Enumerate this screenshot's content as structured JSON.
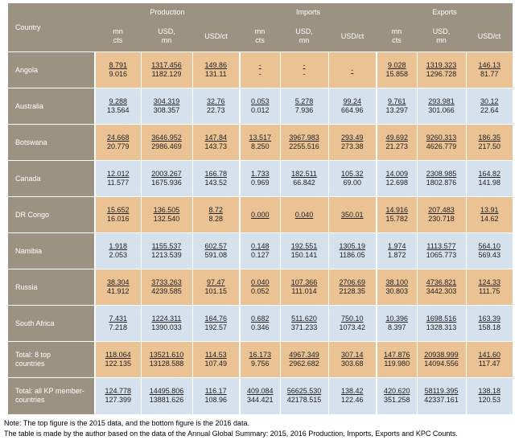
{
  "header": {
    "country": "Country",
    "groups": [
      "Production",
      "Imports",
      "Exports"
    ],
    "columns": [
      [
        "mn",
        "cts"
      ],
      [
        "USD,",
        "mn"
      ],
      [
        "USD/ct"
      ],
      [
        "mn",
        "cts"
      ],
      [
        "USD,",
        "mn"
      ],
      [
        "USD/ct"
      ],
      [
        "mn",
        "cts"
      ],
      [
        "USD,",
        "mn"
      ],
      [
        "USD/ct"
      ]
    ]
  },
  "rows": [
    {
      "name": [
        "Angola"
      ],
      "top": [
        "8.791",
        "1317.456",
        "149.86",
        "-",
        "-",
        "-",
        "9.028",
        "1319.323",
        "146.13"
      ],
      "bottom": [
        "9.016",
        "1182.129",
        "131.11",
        "-",
        "-",
        "",
        "15.858",
        "1296.728",
        "81.77"
      ]
    },
    {
      "name": [
        "Australia"
      ],
      "top": [
        "9.288",
        "304.319",
        "32.76",
        "0.053",
        "5.278",
        "99.24",
        "9.761",
        "293.981",
        "30.12"
      ],
      "bottom": [
        "13.564",
        "308.357",
        "22.73",
        "0.012",
        "7.936",
        "664.96",
        "13.297",
        "301.066",
        "22.64"
      ]
    },
    {
      "name": [
        "Botswana"
      ],
      "top": [
        "24.668",
        "3646.952",
        "147.84",
        "13.517",
        "3967.983",
        "293.49",
        "49.692",
        "9260.313",
        "186.35"
      ],
      "bottom": [
        "20.779",
        "2986.469",
        "143.73",
        "8.250",
        "2255.516",
        "273.38",
        "21.273",
        "4626.779",
        "217.50"
      ]
    },
    {
      "name": [
        "Canada"
      ],
      "top": [
        "12.012",
        "2003.267",
        "166.78",
        "1.733",
        "182.511",
        "105.32",
        "14.009",
        "2308.985",
        "164.82"
      ],
      "bottom": [
        "11.577",
        "1675.936",
        "143.52",
        "0.969",
        "66.842",
        "69.00",
        "12.698",
        "1802.876",
        "141.98"
      ]
    },
    {
      "name": [
        "DR Congo"
      ],
      "top": [
        "15.652",
        "136.505",
        "8.72",
        "0.000",
        "0.040",
        "350.01",
        "14.916",
        "207.483",
        "13.91"
      ],
      "bottom": [
        "16.016",
        "132.540",
        "8.28",
        "",
        "",
        "",
        "15.782",
        "230.718",
        "14.62"
      ]
    },
    {
      "name": [
        "Namibia"
      ],
      "top": [
        "1.918",
        "1155.537",
        "602.57",
        "0.148",
        "192.551",
        "1305.19",
        "1.974",
        "1113.577",
        "564.10"
      ],
      "bottom": [
        "2.053",
        "1213.539",
        "591.08",
        "0.127",
        "150.141",
        "1186.05",
        "1.872",
        "1065.773",
        "569.43"
      ]
    },
    {
      "name": [
        "Russia"
      ],
      "top": [
        "38.304",
        "3733.263",
        "97.47",
        "0.040",
        "107.366",
        "2706.69",
        "38.100",
        "4736.821",
        "124.33"
      ],
      "bottom": [
        "41.912",
        "4239.585",
        "101.15",
        "0.052",
        "111.014",
        "2128.35",
        "30.803",
        "3442.303",
        "111.75"
      ]
    },
    {
      "name": [
        "South Africa"
      ],
      "top": [
        "7.431",
        "1224.311",
        "164.76",
        "0.682",
        "511.620",
        "750.10",
        "10.396",
        "1698.516",
        "163.39"
      ],
      "bottom": [
        "7.218",
        "1390.033",
        "192.57",
        "0.346",
        "371.233",
        "1073.42",
        "8.397",
        "1328.313",
        "158.18"
      ]
    },
    {
      "name": [
        "Total: 8 top",
        "countries"
      ],
      "top": [
        "118.064",
        "13521.610",
        "114.53",
        "16.173",
        "4967.349",
        "307.14",
        "147.876",
        "20938.999",
        "141.60"
      ],
      "bottom": [
        "122.135",
        "13128.588",
        "107.49",
        "9.756",
        "2962.682",
        "303.68",
        "119.980",
        "14094.556",
        "117.47"
      ]
    },
    {
      "name": [
        "Total: all KP member-",
        "countries"
      ],
      "top": [
        "124.778",
        "14495.806",
        "116.17",
        "409.084",
        "56625.530",
        "138.42",
        "420.620",
        "58119.395",
        "138.18"
      ],
      "bottom": [
        "127.399",
        "13881.626",
        "108.96",
        "344.421",
        "42178.515",
        "122.46",
        "351.258",
        "42337.161",
        "120.53"
      ]
    }
  ],
  "notes": [
    "Note: The top figure is the 2015 data, and the bottom figure is the 2016 data.",
    "The table is made by the author based on the data of the Annual Global Summary: 2015, 2016 Production, Imports, Exports and KPC Counts."
  ]
}
